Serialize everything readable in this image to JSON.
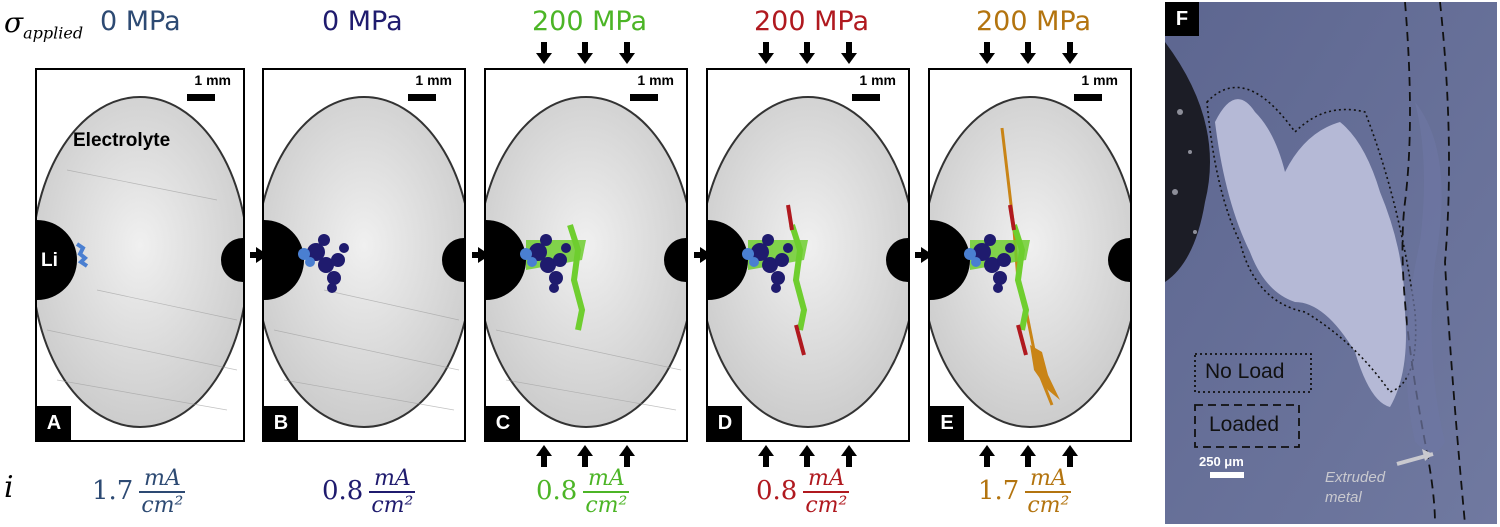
{
  "sigma_label": {
    "main": "σ",
    "sub": "applied"
  },
  "i_label": "i",
  "stress_labels": [
    {
      "text": "0 MPa",
      "color": "#2d4a73"
    },
    {
      "text": "0 MPa",
      "color": "#1f1b6e"
    },
    {
      "text": "200 MPa",
      "color": "#4cb526"
    },
    {
      "text": "200 MPa",
      "color": "#b0191f"
    },
    {
      "text": "200 MPa",
      "color": "#b3740f"
    }
  ],
  "panels": [
    {
      "letter": "A",
      "scale": "1 mm",
      "electrolyte": "Electrolyte",
      "li": "Li"
    },
    {
      "letter": "B",
      "scale": "1 mm"
    },
    {
      "letter": "C",
      "scale": "1 mm"
    },
    {
      "letter": "D",
      "scale": "1 mm"
    },
    {
      "letter": "E",
      "scale": "1 mm"
    }
  ],
  "current_densities": [
    {
      "value": "1.7",
      "num": "mA",
      "den": "cm²",
      "color": "#2d4a73"
    },
    {
      "value": "0.8",
      "num": "mA",
      "den": "cm²",
      "color": "#1f1b6e"
    },
    {
      "value": "0.8",
      "num": "mA",
      "den": "cm²",
      "color": "#4cb526"
    },
    {
      "value": "0.8",
      "num": "mA",
      "den": "cm²",
      "color": "#b0191f"
    },
    {
      "value": "1.7",
      "num": "mA",
      "den": "cm²",
      "color": "#b3740f"
    }
  ],
  "panel_f": {
    "letter": "F",
    "legend_no_load": "No Load",
    "legend_loaded": "Loaded",
    "scale": "250 μm",
    "extruded": "Extruded metal"
  },
  "colors": {
    "dendrite_light": "#4a7fd1",
    "dendrite_dark": "#1f1b6e",
    "green": "#6fce2f",
    "red": "#b0191f",
    "orange": "#c98416",
    "sem_bg": "#6b7498"
  }
}
